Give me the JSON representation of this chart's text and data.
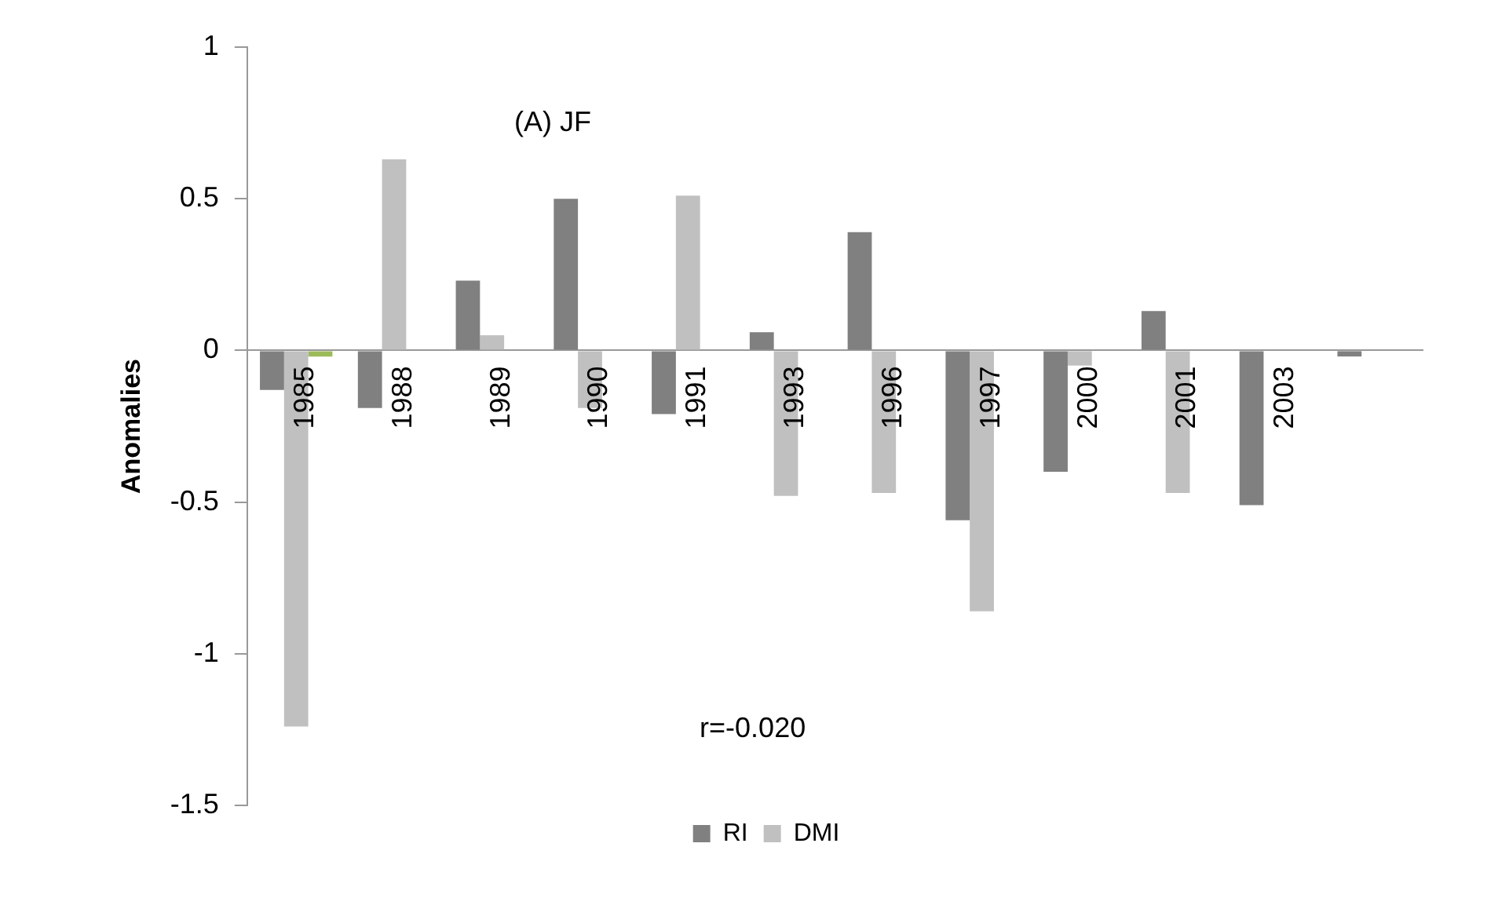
{
  "chart_data": {
    "type": "bar",
    "ylabel": "Anomalies",
    "categories": [
      "1985",
      "1988",
      "1989",
      "1990",
      "1991",
      "1993",
      "1996",
      "1997",
      "2000",
      "2001",
      "2003",
      null
    ],
    "series": [
      {
        "name": "RI",
        "color": "#808080",
        "values": [
          -0.13,
          -0.19,
          0.23,
          0.5,
          -0.21,
          0.06,
          0.39,
          -0.56,
          -0.4,
          0.13,
          -0.51,
          -0.02
        ]
      },
      {
        "name": "DMI",
        "color": "#c0c0c0",
        "values": [
          -1.24,
          0.63,
          0.05,
          -0.19,
          0.51,
          -0.48,
          -0.47,
          -0.86,
          -0.05,
          -0.47,
          null,
          null
        ]
      },
      {
        "color": "#9bbb59",
        "values": [
          -0.02,
          null,
          null,
          null,
          null,
          null,
          null,
          null,
          null,
          null,
          null,
          null
        ]
      }
    ],
    "ylim": [
      -1.5,
      1
    ],
    "yticks": [
      -1.5,
      -1,
      -0.5,
      0,
      0.5,
      1
    ],
    "grid": false,
    "legend": "bottom",
    "annotations": [
      "(A) JF",
      "r=-0.020"
    ]
  }
}
